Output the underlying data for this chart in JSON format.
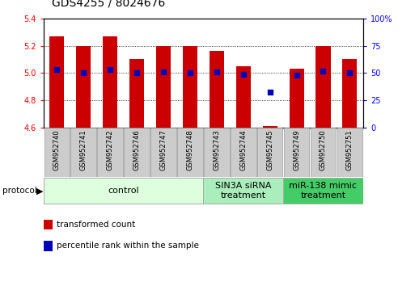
{
  "title": "GDS4255 / 8024676",
  "samples": [
    "GSM952740",
    "GSM952741",
    "GSM952742",
    "GSM952746",
    "GSM952747",
    "GSM952748",
    "GSM952743",
    "GSM952744",
    "GSM952745",
    "GSM952749",
    "GSM952750",
    "GSM952751"
  ],
  "bar_values": [
    5.27,
    5.2,
    5.27,
    5.1,
    5.2,
    5.2,
    5.16,
    5.05,
    4.61,
    5.03,
    5.2,
    5.1
  ],
  "bar_bottom": 4.6,
  "percentile_values": [
    53,
    50,
    53,
    50,
    51,
    50,
    51,
    49,
    32,
    48,
    52,
    50
  ],
  "bar_color": "#cc0000",
  "dot_color": "#0000bb",
  "ylim_left": [
    4.6,
    5.4
  ],
  "ylim_right": [
    0,
    100
  ],
  "yticks_left": [
    4.6,
    4.8,
    5.0,
    5.2,
    5.4
  ],
  "yticks_right": [
    0,
    25,
    50,
    75,
    100
  ],
  "ytick_labels_right": [
    "0",
    "25",
    "50",
    "75",
    "100%"
  ],
  "gridlines": [
    4.8,
    5.0,
    5.2
  ],
  "groups": [
    {
      "label": "control",
      "start": 0,
      "end": 6,
      "color": "#ddffdd",
      "border": "#aaaaaa"
    },
    {
      "label": "SIN3A siRNA\ntreatment",
      "start": 6,
      "end": 9,
      "color": "#aaeebb",
      "border": "#aaaaaa"
    },
    {
      "label": "miR-138 mimic\ntreatment",
      "start": 9,
      "end": 12,
      "color": "#44cc66",
      "border": "#aaaaaa"
    }
  ],
  "protocol_label": "protocol",
  "legend_items": [
    {
      "color": "#cc0000",
      "label": "transformed count"
    },
    {
      "color": "#0000bb",
      "label": "percentile rank within the sample"
    }
  ],
  "bar_width": 0.55,
  "title_fontsize": 10,
  "tick_fontsize": 7,
  "sample_fontsize": 6,
  "group_fontsize": 8,
  "legend_fontsize": 7.5,
  "xtick_box_color": "#cccccc",
  "xtick_box_border": "#999999",
  "spine_color": "#000000"
}
